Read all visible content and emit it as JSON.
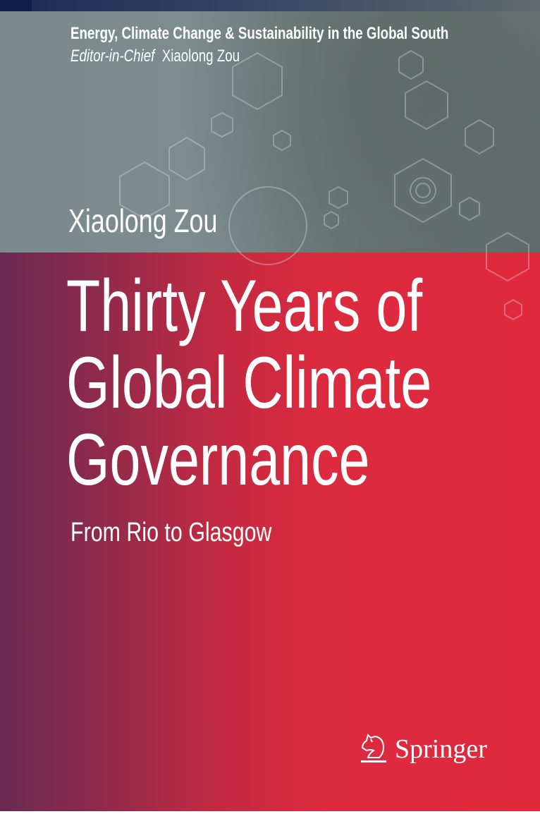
{
  "series": {
    "title": "Energy, Climate Change & Sustainability in the Global South",
    "editor_label": "Editor-in-Chief",
    "editor_name": "Xiaolong Zou"
  },
  "author": "Xiaolong Zou",
  "title_lines": [
    "Thirty Years of",
    "Global Climate",
    "Governance"
  ],
  "subtitle": "From Rio to Glasgow",
  "publisher": {
    "name": "Springer",
    "logo": "springer-horse-logo"
  },
  "colors": {
    "red": "#e0293d",
    "purple": "#6b2a52",
    "slate": "#7a8a8c",
    "navy": "#0f1d4a"
  }
}
